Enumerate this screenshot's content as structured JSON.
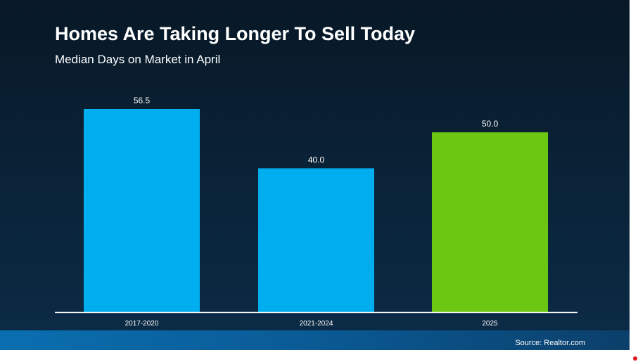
{
  "chart_data": {
    "type": "bar",
    "title": "Homes Are Taking Longer To Sell Today",
    "subtitle": "Median Days on Market in April",
    "categories": [
      "2017-2020",
      "2021-2024",
      "2025"
    ],
    "values": [
      56.5,
      40.0,
      50.0
    ],
    "data_labels": [
      "56.5",
      "40.0",
      "50.0"
    ],
    "colors": [
      "#00aeef",
      "#00aeef",
      "#6cc712"
    ],
    "ylim": [
      0,
      56.5
    ],
    "grid": false,
    "source": "Source: Realtor.com"
  }
}
